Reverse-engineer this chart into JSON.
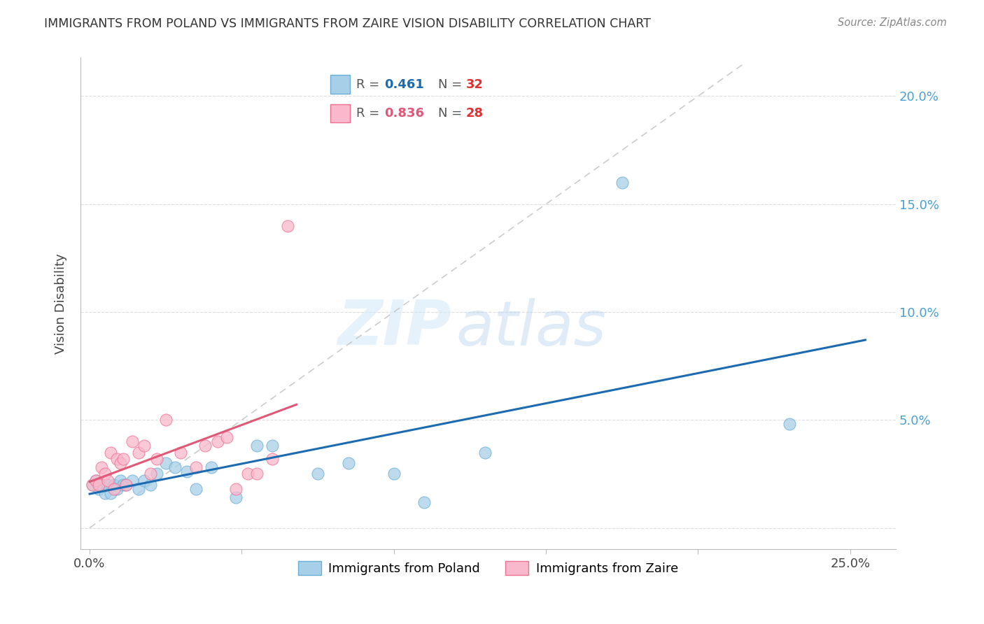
{
  "title": "IMMIGRANTS FROM POLAND VS IMMIGRANTS FROM ZAIRE VISION DISABILITY CORRELATION CHART",
  "source": "Source: ZipAtlas.com",
  "ylabel": "Vision Disability",
  "poland_color": "#a8cfe8",
  "poland_color_edge": "#6aaed6",
  "zaire_color": "#f9b8cb",
  "zaire_color_edge": "#f07090",
  "trendline_poland_color": "#1c6bb0",
  "trendline_zaire_color": "#e05878",
  "diagonal_color": "#cccccc",
  "watermark_zip": "ZIP",
  "watermark_atlas": "atlas",
  "poland_R": "0.461",
  "poland_N": "32",
  "zaire_R": "0.836",
  "zaire_N": "28",
  "R_color_poland": "#1c6bb0",
  "N_color_poland": "#e03030",
  "R_color_zaire": "#e05878",
  "N_color_zaire": "#e03030",
  "poland_x": [
    0.001,
    0.002,
    0.003,
    0.004,
    0.005,
    0.006,
    0.007,
    0.008,
    0.009,
    0.01,
    0.011,
    0.012,
    0.014,
    0.016,
    0.018,
    0.02,
    0.022,
    0.025,
    0.028,
    0.032,
    0.035,
    0.04,
    0.048,
    0.055,
    0.06,
    0.075,
    0.085,
    0.1,
    0.11,
    0.13,
    0.175,
    0.23
  ],
  "poland_y": [
    0.02,
    0.022,
    0.018,
    0.02,
    0.016,
    0.02,
    0.016,
    0.02,
    0.018,
    0.022,
    0.02,
    0.02,
    0.022,
    0.018,
    0.022,
    0.02,
    0.025,
    0.03,
    0.028,
    0.026,
    0.018,
    0.028,
    0.014,
    0.038,
    0.038,
    0.025,
    0.03,
    0.025,
    0.012,
    0.035,
    0.16,
    0.048
  ],
  "zaire_x": [
    0.001,
    0.002,
    0.003,
    0.004,
    0.005,
    0.006,
    0.007,
    0.008,
    0.009,
    0.01,
    0.011,
    0.012,
    0.014,
    0.016,
    0.018,
    0.02,
    0.022,
    0.025,
    0.03,
    0.035,
    0.038,
    0.042,
    0.045,
    0.048,
    0.052,
    0.055,
    0.06,
    0.065
  ],
  "zaire_y": [
    0.02,
    0.022,
    0.02,
    0.028,
    0.025,
    0.022,
    0.035,
    0.018,
    0.032,
    0.03,
    0.032,
    0.02,
    0.04,
    0.035,
    0.038,
    0.025,
    0.032,
    0.05,
    0.035,
    0.028,
    0.038,
    0.04,
    0.042,
    0.018,
    0.025,
    0.025,
    0.032,
    0.14
  ],
  "xlim": [
    -0.003,
    0.265
  ],
  "ylim": [
    -0.01,
    0.218
  ],
  "yticks": [
    0.0,
    0.05,
    0.1,
    0.15,
    0.2
  ],
  "ytick_labels_right": [
    "",
    "5.0%",
    "10.0%",
    "15.0%",
    "20.0%"
  ],
  "xticks": [
    0.0,
    0.05,
    0.1,
    0.15,
    0.2,
    0.25
  ],
  "xtick_labels": [
    "0.0%",
    "",
    "",
    "",
    "",
    "25.0%"
  ]
}
